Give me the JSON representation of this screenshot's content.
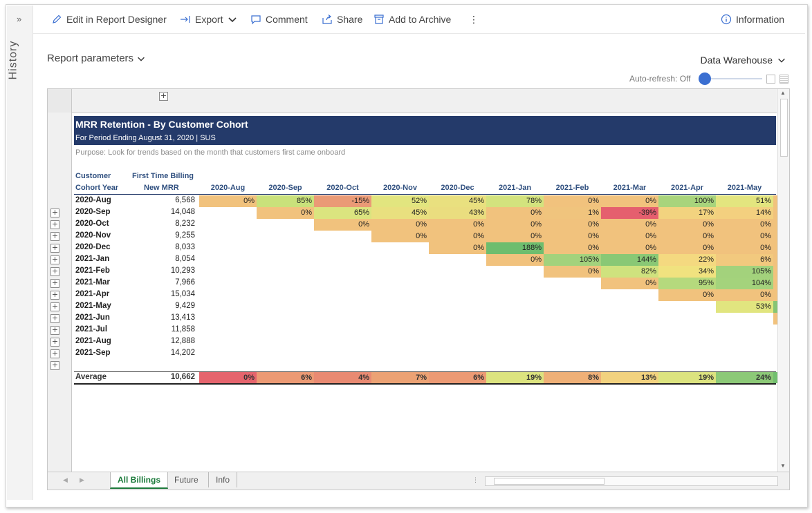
{
  "rail": {
    "expand": "»",
    "history": "History"
  },
  "toolbar": {
    "edit": "Edit in Report Designer",
    "export": "Export",
    "comment": "Comment",
    "share": "Share",
    "archive": "Add to Archive",
    "more": "⋮",
    "information": "Information"
  },
  "params": {
    "label": "Report parameters",
    "datasource": "Data Warehouse",
    "autorefresh": "Auto-refresh: Off"
  },
  "report": {
    "title": "MRR Retention - By Customer Cohort",
    "subtitle": "For Period Ending August 31, 2020 | SUS",
    "purpose": "Purpose: Look for trends based on the month that customers first came onboard",
    "col_cohort_1": "Customer",
    "col_cohort_2": "Cohort Year",
    "col_mrr_1": "First Time Billing",
    "col_mrr_2": "New MRR",
    "months": [
      "2020-Aug",
      "2020-Sep",
      "2020-Oct",
      "2020-Nov",
      "2020-Dec",
      "2021-Jan",
      "2021-Feb",
      "2021-Mar",
      "2021-Apr",
      "2021-May"
    ],
    "rows": [
      {
        "cohort": "2020-Aug",
        "mrr": "6,568",
        "start": 0,
        "vals": [
          "0%",
          "85%",
          "-15%",
          "52%",
          "45%",
          "78%",
          "0%",
          "0%",
          "100%",
          "51%"
        ],
        "colors": [
          "#f1c27d",
          "#c9e17b",
          "#ea9a76",
          "#e2e57f",
          "#e9e07f",
          "#d3e37e",
          "#f1c27d",
          "#f1c27d",
          "#a8d47c",
          "#e3e57f"
        ],
        "edge": "#f1c27d"
      },
      {
        "cohort": "2020-Sep",
        "mrr": "14,048",
        "start": 1,
        "vals": [
          "0%",
          "65%",
          "45%",
          "43%",
          "0%",
          "1%",
          "-39%",
          "17%",
          "14%"
        ],
        "colors": [
          "#f1c27d",
          "#dbe47f",
          "#e9e07f",
          "#eadd7f",
          "#f1c27d",
          "#f0c47d",
          "#e55f6e",
          "#f2d37f",
          "#f3d07f"
        ],
        "edge": "#f1c27d"
      },
      {
        "cohort": "2020-Oct",
        "mrr": "8,232",
        "start": 2,
        "vals": [
          "0%",
          "0%",
          "0%",
          "0%",
          "0%",
          "0%",
          "0%",
          "0%"
        ],
        "colors": [
          "#f1c27d",
          "#f1c27d",
          "#f1c27d",
          "#f1c27d",
          "#f1c27d",
          "#f1c27d",
          "#f1c27d",
          "#f1c27d"
        ],
        "edge": "#f1c27d"
      },
      {
        "cohort": "2020-Nov",
        "mrr": "9,255",
        "start": 3,
        "vals": [
          "0%",
          "0%",
          "0%",
          "0%",
          "0%",
          "0%",
          "0%"
        ],
        "colors": [
          "#f1c27d",
          "#f1c27d",
          "#f1c27d",
          "#f1c27d",
          "#f1c27d",
          "#f1c27d",
          "#f1c27d"
        ],
        "edge": "#f1c27d"
      },
      {
        "cohort": "2020-Dec",
        "mrr": "8,033",
        "start": 4,
        "vals": [
          "0%",
          "188%",
          "0%",
          "0%",
          "0%",
          "0%"
        ],
        "colors": [
          "#f1c27d",
          "#6ebd6e",
          "#f1c27d",
          "#f1c27d",
          "#f1c27d",
          "#f1c27d"
        ],
        "edge": "#f1c27d"
      },
      {
        "cohort": "2021-Jan",
        "mrr": "8,054",
        "start": 5,
        "vals": [
          "0%",
          "105%",
          "144%",
          "22%",
          "6%"
        ],
        "colors": [
          "#f1c27d",
          "#a3d27c",
          "#89c875",
          "#f4d980",
          "#f2c97e"
        ],
        "edge": "#f1c27d"
      },
      {
        "cohort": "2021-Feb",
        "mrr": "10,293",
        "start": 6,
        "vals": [
          "0%",
          "82%",
          "34%",
          "105%"
        ],
        "colors": [
          "#f1c27d",
          "#cfe27e",
          "#f0e27f",
          "#a3d27c"
        ],
        "edge": "#f1c27d"
      },
      {
        "cohort": "2021-Mar",
        "mrr": "7,966",
        "start": 7,
        "vals": [
          "0%",
          "95%",
          "104%"
        ],
        "colors": [
          "#f1c27d",
          "#b5d97d",
          "#a4d37c"
        ],
        "edge": "#f1c27d"
      },
      {
        "cohort": "2021-Apr",
        "mrr": "15,034",
        "start": 8,
        "vals": [
          "0%",
          "0%"
        ],
        "colors": [
          "#f1c27d",
          "#f1c27d"
        ],
        "edge": "#f1c27d"
      },
      {
        "cohort": "2021-May",
        "mrr": "9,429",
        "start": 9,
        "vals": [
          "53%"
        ],
        "colors": [
          "#e1e57f"
        ],
        "edge": "#86c574"
      },
      {
        "cohort": "2021-Jun",
        "mrr": "13,413",
        "start": 10,
        "vals": [],
        "colors": [],
        "edge": "#f1c27d"
      },
      {
        "cohort": "2021-Jul",
        "mrr": "11,858",
        "start": 10,
        "vals": [],
        "colors": [],
        "edge": ""
      },
      {
        "cohort": "2021-Aug",
        "mrr": "12,888",
        "start": 10,
        "vals": [],
        "colors": [],
        "edge": ""
      },
      {
        "cohort": "2021-Sep",
        "mrr": "14,202",
        "start": 10,
        "vals": [],
        "colors": [],
        "edge": ""
      }
    ],
    "average": {
      "label": "Average",
      "mrr": "10,662",
      "vals": [
        "0%",
        "6%",
        "4%",
        "7%",
        "6%",
        "19%",
        "8%",
        "13%",
        "19%",
        "24%"
      ],
      "colors": [
        "#e5646d",
        "#ec9a74",
        "#e98a72",
        "#eca274",
        "#ec9a74",
        "#dce37f",
        "#efb077",
        "#f2d27f",
        "#dce37f",
        "#8cc977"
      ],
      "edge": "#72bf6f"
    }
  },
  "tabs": {
    "all": "All Billings",
    "future": "Future",
    "info": "Info"
  }
}
